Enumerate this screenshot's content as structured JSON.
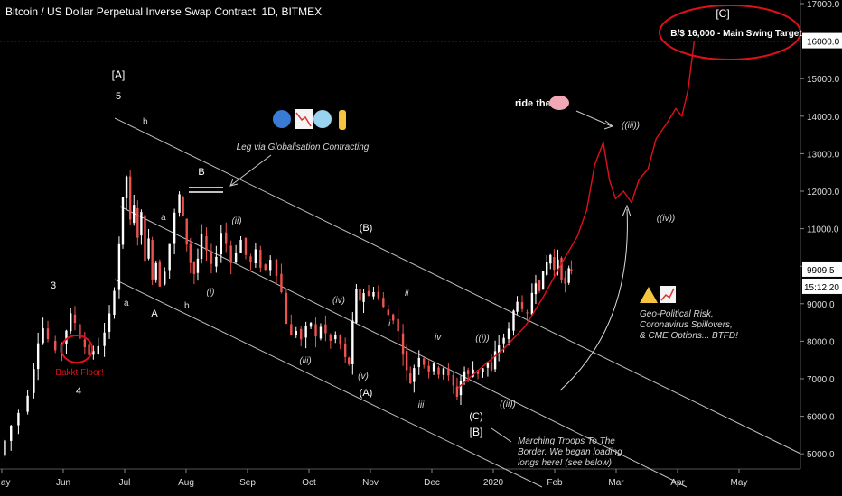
{
  "chart_data": {
    "type": "candlestick",
    "title": "Bitcoin / US Dollar Perpetual Inverse Swap Contract, 1D, BITMEX",
    "y_ticks": [
      "17000.0",
      "16000.0",
      "15000.0",
      "14000.0",
      "13000.0",
      "12000.0",
      "11000.0",
      "10000.0",
      "9000.0",
      "8000.0",
      "7000.0",
      "6000.0",
      "5000.0"
    ],
    "x_ticks": [
      "May",
      "Jun",
      "Jul",
      "Aug",
      "Sep",
      "Oct",
      "Nov",
      "Dec",
      "2020",
      "Feb",
      "Mar",
      "Apr",
      "May"
    ],
    "last_price": "9909.5",
    "countdown": "15:12:20",
    "price_path": [
      [
        0.0,
        4950
      ],
      [
        0.08,
        5350
      ],
      [
        0.18,
        5750
      ],
      [
        0.3,
        6100
      ],
      [
        0.45,
        6600
      ],
      [
        0.55,
        7300
      ],
      [
        0.62,
        8000
      ],
      [
        0.7,
        8350
      ],
      [
        0.78,
        8050
      ],
      [
        0.9,
        7700
      ],
      [
        1.0,
        7950
      ],
      [
        1.08,
        8300
      ],
      [
        1.15,
        8700
      ],
      [
        1.22,
        8500
      ],
      [
        1.3,
        8100
      ],
      [
        1.38,
        7850
      ],
      [
        1.45,
        7650
      ],
      [
        1.52,
        7700
      ],
      [
        1.6,
        7900
      ],
      [
        1.7,
        8200
      ],
      [
        1.78,
        8700
      ],
      [
        1.86,
        9400
      ],
      [
        1.94,
        10600
      ],
      [
        2.0,
        11800
      ],
      [
        2.06,
        12400
      ],
      [
        2.12,
        11200
      ],
      [
        2.18,
        11600
      ],
      [
        2.24,
        10800
      ],
      [
        2.3,
        11400
      ],
      [
        2.36,
        10200
      ],
      [
        2.42,
        10700
      ],
      [
        2.48,
        9700
      ],
      [
        2.54,
        10100
      ],
      [
        2.6,
        9500
      ],
      [
        2.68,
        9900
      ],
      [
        2.76,
        10600
      ],
      [
        2.84,
        11400
      ],
      [
        2.92,
        11900
      ],
      [
        2.98,
        11300
      ],
      [
        3.04,
        10600
      ],
      [
        3.1,
        10100
      ],
      [
        3.16,
        9800
      ],
      [
        3.22,
        10200
      ],
      [
        3.28,
        10800
      ],
      [
        3.36,
        10400
      ],
      [
        3.44,
        10000
      ],
      [
        3.52,
        10300
      ],
      [
        3.6,
        10900
      ],
      [
        3.68,
        10600
      ],
      [
        3.76,
        10100
      ],
      [
        3.84,
        10400
      ],
      [
        3.92,
        10700
      ],
      [
        4.0,
        10300
      ],
      [
        4.08,
        10100
      ],
      [
        4.16,
        10400
      ],
      [
        4.24,
        10000
      ],
      [
        4.32,
        9900
      ],
      [
        4.4,
        10200
      ],
      [
        4.5,
        9800
      ],
      [
        4.58,
        9300
      ],
      [
        4.66,
        8500
      ],
      [
        4.74,
        8150
      ],
      [
        4.82,
        8300
      ],
      [
        4.9,
        8050
      ],
      [
        4.98,
        8350
      ],
      [
        5.06,
        8500
      ],
      [
        5.14,
        8100
      ],
      [
        5.22,
        8400
      ],
      [
        5.3,
        8200
      ],
      [
        5.38,
        8000
      ],
      [
        5.46,
        8150
      ],
      [
        5.54,
        7900
      ],
      [
        5.62,
        7550
      ],
      [
        5.68,
        7400
      ],
      [
        5.74,
        8500
      ],
      [
        5.8,
        9350
      ],
      [
        5.86,
        9100
      ],
      [
        5.92,
        9300
      ],
      [
        6.0,
        9200
      ],
      [
        6.08,
        9350
      ],
      [
        6.16,
        9150
      ],
      [
        6.24,
        8900
      ],
      [
        6.32,
        8700
      ],
      [
        6.4,
        8600
      ],
      [
        6.48,
        8250
      ],
      [
        6.56,
        7700
      ],
      [
        6.62,
        7200
      ],
      [
        6.68,
        6900
      ],
      [
        6.74,
        7300
      ],
      [
        6.82,
        7600
      ],
      [
        6.9,
        7400
      ],
      [
        6.98,
        7200
      ],
      [
        7.06,
        7350
      ],
      [
        7.14,
        7150
      ],
      [
        7.22,
        7300
      ],
      [
        7.3,
        7050
      ],
      [
        7.38,
        6800
      ],
      [
        7.44,
        6550
      ],
      [
        7.5,
        6950
      ],
      [
        7.56,
        7200
      ],
      [
        7.62,
        7100
      ],
      [
        7.7,
        7250
      ],
      [
        7.78,
        7150
      ],
      [
        7.86,
        7300
      ],
      [
        7.94,
        7450
      ],
      [
        8.0,
        7200
      ],
      [
        8.06,
        7700
      ],
      [
        8.12,
        7900
      ],
      [
        8.2,
        8100
      ],
      [
        8.28,
        8300
      ],
      [
        8.36,
        8800
      ],
      [
        8.42,
        9100
      ],
      [
        8.5,
        8800
      ],
      [
        8.58,
        8700
      ],
      [
        8.66,
        9300
      ],
      [
        8.72,
        9600
      ],
      [
        8.78,
        9400
      ],
      [
        8.84,
        9800
      ],
      [
        8.9,
        10100
      ],
      [
        8.96,
        10300
      ],
      [
        9.02,
        9900
      ],
      [
        9.08,
        10200
      ],
      [
        9.14,
        9700
      ],
      [
        9.2,
        9500
      ],
      [
        9.26,
        9900
      ],
      [
        9.3,
        9910
      ]
    ],
    "projection_path": [
      [
        7.45,
        6750
      ],
      [
        7.8,
        7250
      ],
      [
        8.2,
        7800
      ],
      [
        8.55,
        8400
      ],
      [
        8.85,
        9200
      ],
      [
        9.15,
        10100
      ],
      [
        9.4,
        10800
      ],
      [
        9.55,
        11500
      ],
      [
        9.68,
        12700
      ],
      [
        9.82,
        13300
      ],
      [
        9.92,
        12300
      ],
      [
        10.02,
        11800
      ],
      [
        10.15,
        12000
      ],
      [
        10.28,
        11700
      ],
      [
        10.4,
        12300
      ],
      [
        10.55,
        12600
      ],
      [
        10.68,
        13400
      ],
      [
        10.85,
        13800
      ],
      [
        11.0,
        14200
      ],
      [
        11.1,
        14000
      ],
      [
        11.2,
        14700
      ],
      [
        11.3,
        16000
      ]
    ]
  },
  "annotations": {
    "wave_5": "5",
    "wave_A_big": "[A]",
    "wave_b_top": "b",
    "wave_3": "3",
    "wave_4": "4",
    "bakkt": "Bakkt Floor!",
    "wave_a_small": "a",
    "wave_a_low": "a",
    "wave_A": "A",
    "wave_b_low": "b",
    "wave_B": "B",
    "wave_ii": "(ii)",
    "wave_i": "(i)",
    "wave_iii": "(iii)",
    "wave_iv": "(iv)",
    "wave_v": "(v)",
    "wave_B_paren": "(B)",
    "wave_A_paren": "(A)",
    "wave_ii_small": "ii",
    "wave_i_small": "i",
    "wave_iv_small": "iv",
    "wave_iii_small": "iii",
    "wave_i_dbl": "((i))",
    "wave_ii_dbl": "((ii))",
    "wave_C_paren": "(C)",
    "wave_B_big": "[B]",
    "wave_iii_dbl": "((iii))",
    "wave_iv_dbl": "((iv))",
    "wave_C_big": "[C]",
    "ride": "ride the",
    "leg": "Leg via Globalisation Contracting",
    "target": "B/$ 16,000 - Main Swing Target",
    "risk_1": "Geo-Political Risk,",
    "risk_2": "Coronavirus Spillovers,",
    "risk_3": "& CME Options... BTFD!",
    "troops_1": "Marching Troops To The",
    "troops_2": "Border. We began loading",
    "troops_3": "longs here! (see below)"
  },
  "colors": {
    "up": "#ffffff",
    "down": "#ef5350",
    "projection": "#e0101a",
    "channel": "#bfbfbf",
    "axis": "#1e1e1e"
  }
}
